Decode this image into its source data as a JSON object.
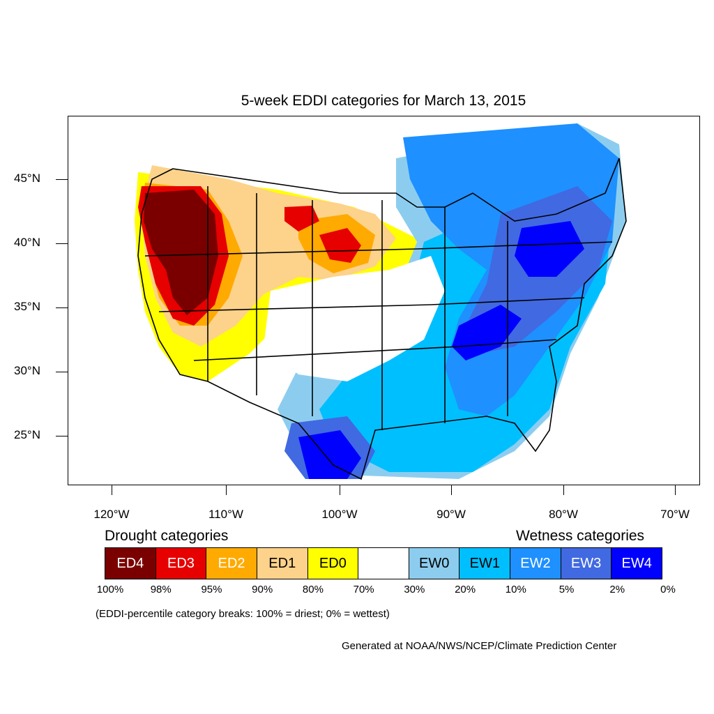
{
  "title": "5-week EDDI categories for March 13, 2015",
  "lat_labels": [
    "45°N",
    "40°N",
    "35°N",
    "30°N",
    "25°N"
  ],
  "lon_labels": [
    "120°W",
    "110°W",
    "100°W",
    "90°W",
    "80°W",
    "70°W"
  ],
  "legend": {
    "drought_heading": "Drought categories",
    "wetness_heading": "Wetness categories",
    "categories": [
      {
        "label": "ED4",
        "color": "#7a0000",
        "text_color": "#ffffff"
      },
      {
        "label": "ED3",
        "color": "#e60000",
        "text_color": "#ffffff"
      },
      {
        "label": "ED2",
        "color": "#ffaa00",
        "text_color": "#ffffff"
      },
      {
        "label": "ED1",
        "color": "#fdd28a",
        "text_color": "#000000"
      },
      {
        "label": "ED0",
        "color": "#ffff00",
        "text_color": "#000000"
      },
      {
        "label": "",
        "color": "#ffffff",
        "text_color": "#000000"
      },
      {
        "label": "EW0",
        "color": "#8ccdef",
        "text_color": "#000000"
      },
      {
        "label": "EW1",
        "color": "#00bfff",
        "text_color": "#000000"
      },
      {
        "label": "EW2",
        "color": "#1e90ff",
        "text_color": "#ffffff"
      },
      {
        "label": "EW3",
        "color": "#4169e1",
        "text_color": "#ffffff"
      },
      {
        "label": "EW4",
        "color": "#0000ff",
        "text_color": "#ffffff"
      }
    ],
    "breaks": [
      "100%",
      "98%",
      "95%",
      "90%",
      "80%",
      "70%",
      "30%",
      "20%",
      "10%",
      "5%",
      "2%",
      "0%"
    ]
  },
  "note": "(EDDI-percentile category breaks: 100% = driest; 0% = wettest)",
  "credit": "Generated at NOAA/NWS/NCEP/Climate Prediction Center"
}
